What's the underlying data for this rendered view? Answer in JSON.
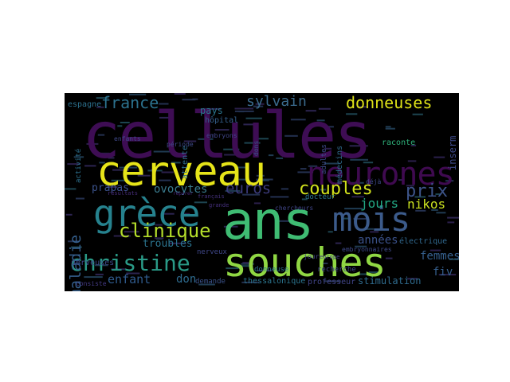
{
  "wordcloud": {
    "words": [
      {
        "text": "cellules",
        "color": "#3e0d54"
      },
      {
        "text": "cerveau",
        "color": "#e6e419"
      },
      {
        "text": "neurones",
        "color": "#3f0a50"
      },
      {
        "text": "ans",
        "color": "#3fbc73"
      },
      {
        "text": "souches",
        "color": "#90d743"
      },
      {
        "text": "mois",
        "color": "#3c5b8b"
      },
      {
        "text": "grèce",
        "color": "#26828e"
      },
      {
        "text": "christine",
        "color": "#2a9a87"
      },
      {
        "text": "clinique",
        "color": "#b5de2b"
      },
      {
        "text": "couples",
        "color": "#d1e11c"
      },
      {
        "text": "donneuses",
        "color": "#dfe318"
      },
      {
        "text": "france",
        "color": "#2c728e"
      },
      {
        "text": "prix",
        "color": "#3d5489"
      },
      {
        "text": "nikos",
        "color": "#c9e020"
      },
      {
        "text": "sylvain",
        "color": "#3a6a8c"
      },
      {
        "text": "maladie",
        "color": "#355f8d"
      },
      {
        "text": "euros",
        "color": "#3b3a7a"
      },
      {
        "text": "jours",
        "color": "#22a884"
      },
      {
        "text": "ovocytes",
        "color": "#3a7b8d"
      },
      {
        "text": "enfant",
        "color": "#2f5a8c"
      },
      {
        "text": "femmes",
        "color": "#355f8d"
      },
      {
        "text": "années",
        "color": "#3b528b"
      },
      {
        "text": "fiv",
        "color": "#355f8d"
      },
      {
        "text": "don",
        "color": "#2e6b8e"
      },
      {
        "text": "stimulation",
        "color": "#2f6b8e"
      },
      {
        "text": "troubles",
        "color": "#2b748e"
      },
      {
        "text": "prapas",
        "color": "#3b528b"
      },
      {
        "text": "pays",
        "color": "#2b768e"
      },
      {
        "text": "électrique",
        "color": "#31688e"
      },
      {
        "text": "espagne",
        "color": "#2c718e"
      },
      {
        "text": "nerveuses",
        "color": "#3e4989"
      },
      {
        "text": "thessalonique",
        "color": "#2b748e"
      },
      {
        "text": "professeur",
        "color": "#414487"
      },
      {
        "text": "recherche",
        "color": "#404588"
      },
      {
        "text": "donneuse",
        "color": "#2c728e"
      },
      {
        "text": "demande",
        "color": "#3b528b"
      },
      {
        "text": "raconte",
        "color": "#2fb47c"
      },
      {
        "text": "hôpital",
        "color": "#35608d"
      },
      {
        "text": "docteur",
        "color": "#2b758e"
      },
      {
        "text": "nerveux",
        "color": "#3f4788"
      },
      {
        "text": "chercheurs",
        "color": "#404588"
      },
      {
        "text": "consiste",
        "color": "#443a83"
      },
      {
        "text": "attente",
        "color": "#2f6c8e"
      },
      {
        "text": "médecins",
        "color": "#2f6c8e"
      },
      {
        "text": "inserm",
        "color": "#3e4a89"
      },
      {
        "text": "déjà",
        "color": "#3e4a89"
      },
      {
        "text": "embryonnaires",
        "color": "#3e4989"
      },
      {
        "text": "activité",
        "color": "#2d708e"
      },
      {
        "text": "adultes",
        "color": "#3e4a89"
      },
      {
        "text": "dons",
        "color": "#3b528b"
      },
      {
        "text": "enfants",
        "color": "#3f4889"
      },
      {
        "text": "embryons",
        "color": "#404588"
      },
      {
        "text": "période",
        "color": "#3e4a89"
      },
      {
        "text": "jour",
        "color": "#414487"
      },
      {
        "text": "europe",
        "color": "#433e85"
      },
      {
        "text": "français",
        "color": "#46327e"
      },
      {
        "text": "grande",
        "color": "#46307e"
      },
      {
        "text": "résultats",
        "color": "#472d7b"
      },
      {
        "text": "réparer",
        "color": "#482677"
      }
    ]
  }
}
